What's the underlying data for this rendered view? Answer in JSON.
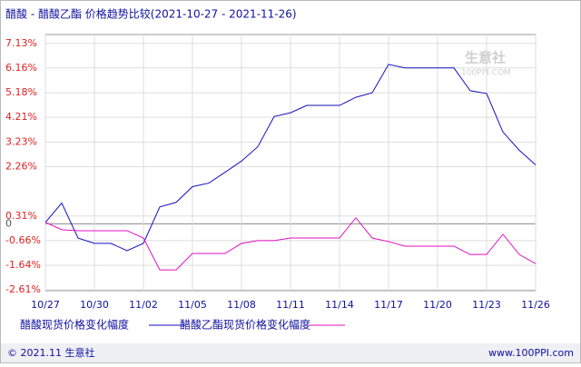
{
  "chart_data": {
    "type": "line",
    "title": "醋酸 - 醋酸乙酯 价格趋势比较(2021-10-27 - 2021-11-26)",
    "categories": [
      "10/27",
      null,
      null,
      "10/30",
      null,
      null,
      "11/02",
      null,
      null,
      "11/05",
      null,
      null,
      "11/08",
      null,
      null,
      "11/11",
      null,
      null,
      "11/14",
      null,
      null,
      "11/17",
      null,
      null,
      "11/20",
      null,
      null,
      "11/23",
      null,
      null,
      "11/26"
    ],
    "series": [
      {
        "name": "醋酸现货价格变化幅度",
        "color": "#1010c0",
        "values": [
          0.06,
          0.82,
          -0.56,
          -0.77,
          -0.77,
          -1.06,
          -0.77,
          0.67,
          0.85,
          1.47,
          1.61,
          2.04,
          2.48,
          3.05,
          4.24,
          4.39,
          4.68,
          4.68,
          4.68,
          5.0,
          5.18,
          6.3,
          6.16,
          6.16,
          6.16,
          6.16,
          5.26,
          5.15,
          3.63,
          2.91,
          2.33
        ]
      },
      {
        "name": "醋酸乙酯现货价格变化幅度",
        "color": "#e010c0",
        "values": [
          0.06,
          -0.23,
          -0.27,
          -0.27,
          -0.27,
          -0.27,
          -0.56,
          -1.82,
          -1.82,
          -1.17,
          -1.17,
          -1.17,
          -0.77,
          -0.66,
          -0.66,
          -0.56,
          -0.56,
          -0.56,
          -0.56,
          0.24,
          -0.56,
          -0.7,
          -0.88,
          -0.88,
          -0.88,
          -0.88,
          -1.21,
          -1.21,
          -0.41,
          -1.21,
          -1.57
        ]
      }
    ],
    "ylim": [
      -2.64,
      7.48
    ],
    "yticks": [
      {
        "value": 7.13,
        "label": "7.13%"
      },
      {
        "value": 6.16,
        "label": "6.16%"
      },
      {
        "value": 5.18,
        "label": "5.18%"
      },
      {
        "value": 4.21,
        "label": "4.21%"
      },
      {
        "value": 3.23,
        "label": "3.23%"
      },
      {
        "value": 2.26,
        "label": "2.26%"
      },
      0,
      {
        "value": 0.31,
        "label": "0.31%"
      },
      {
        "value": -0.66,
        "label": "-0.66%"
      },
      {
        "value": -1.64,
        "label": "-1.64%"
      },
      {
        "value": -2.61,
        "label": "-2.61%"
      }
    ],
    "grid": true,
    "watermark": "生意社",
    "watermark_sub": "100PPI.COM",
    "footer_left": "© 2021.11 生意社",
    "footer_right": "www.100PPI.com"
  }
}
